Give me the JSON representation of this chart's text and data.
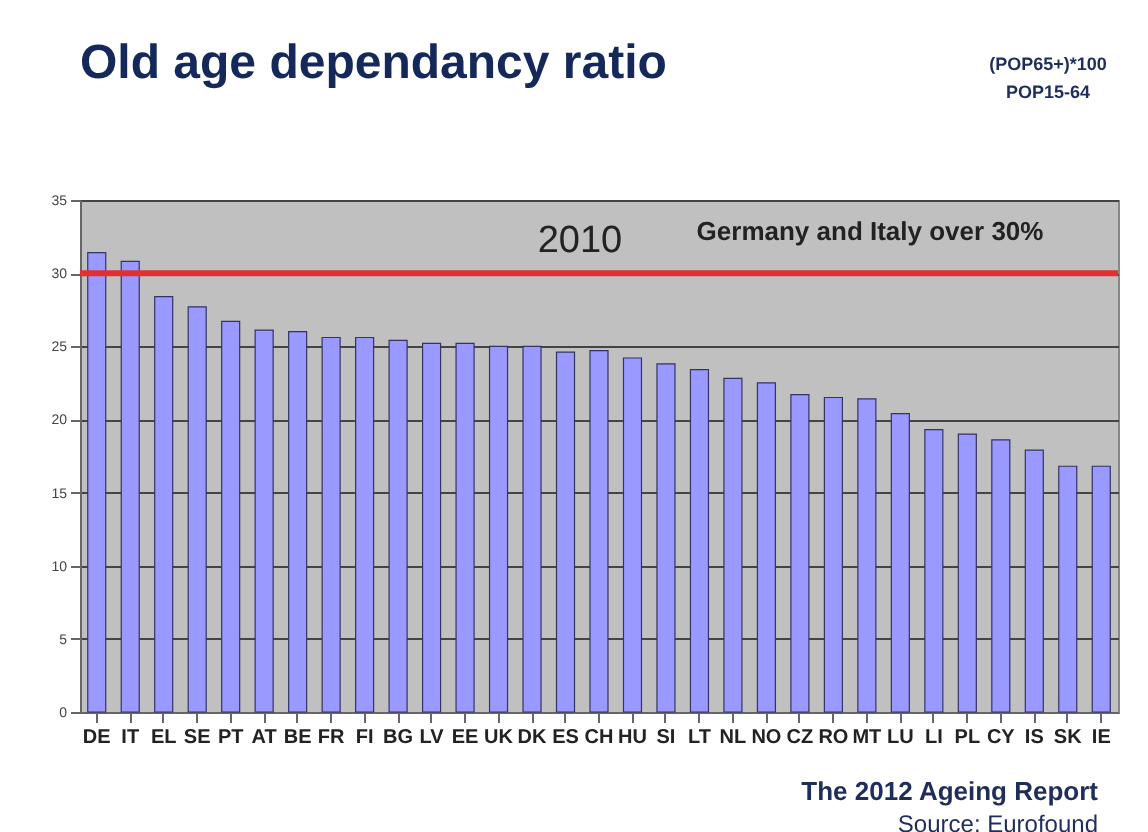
{
  "chart_data": {
    "type": "bar",
    "title": "Old age dependancy ratio",
    "categories": [
      "DE",
      "IT",
      "EL",
      "SE",
      "PT",
      "AT",
      "BE",
      "FR",
      "FI",
      "BG",
      "LV",
      "EE",
      "UK",
      "DK",
      "ES",
      "CH",
      "HU",
      "SI",
      "LT",
      "NL",
      "NO",
      "CZ",
      "RO",
      "MT",
      "LU",
      "LI",
      "PL",
      "CY",
      "IS",
      "SK",
      "IE"
    ],
    "values": [
      31.4,
      30.8,
      28.4,
      27.7,
      26.7,
      26.1,
      26.0,
      25.6,
      25.6,
      25.4,
      25.2,
      25.2,
      25.0,
      25.0,
      24.6,
      24.7,
      24.2,
      23.8,
      23.4,
      22.8,
      22.5,
      21.7,
      21.5,
      21.4,
      20.4,
      19.3,
      19.0,
      18.6,
      17.9,
      16.8,
      16.8
    ],
    "color": "#9999ff",
    "ylim": [
      0,
      35
    ],
    "yticks": [
      0,
      5,
      10,
      15,
      20,
      25,
      30,
      35
    ],
    "grid": "y",
    "ref_lines": [
      {
        "axis": "y",
        "value": 30,
        "color": "#e03030"
      }
    ],
    "annotations": [
      "(POP65+)*100",
      "POP15-64",
      "2010",
      "Germany and Italy over 30%",
      "The 2012 Ageing Report",
      "Source: Eurofound"
    ]
  }
}
